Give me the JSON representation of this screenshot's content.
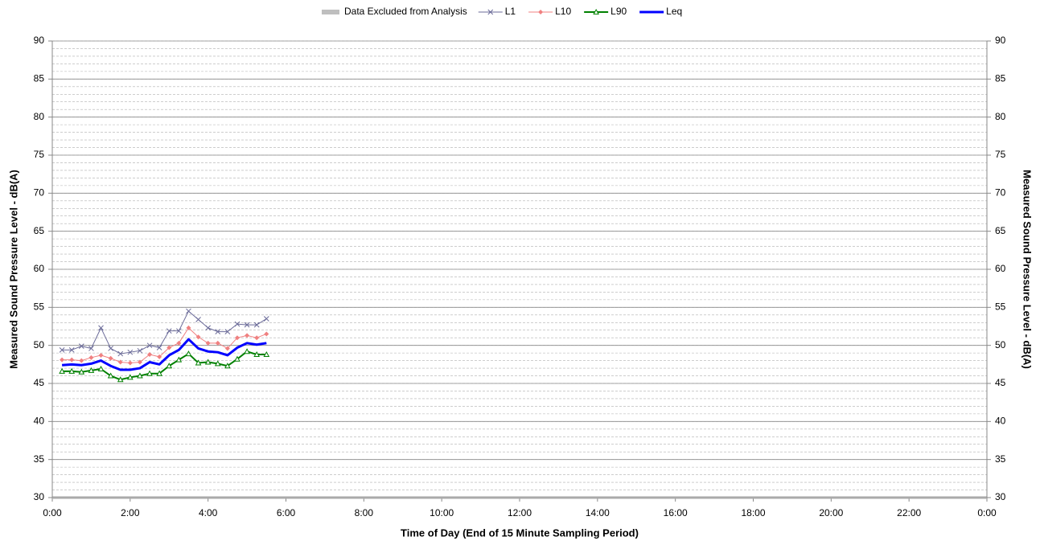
{
  "chart_data": {
    "type": "line",
    "x_title": "Time of Day (End of 15 Minute Sampling Period)",
    "y_title": "Measured Sound Pressure Level - dB(A)",
    "y2_title": "Measured Sound Pressure Level - dB(A)",
    "excluded_legend": {
      "name": "Data Excluded from Analysis",
      "color": "#bfbfbf"
    },
    "x": [
      0.25,
      0.5,
      0.75,
      1,
      1.25,
      1.5,
      1.75,
      2,
      2.25,
      2.5,
      2.75,
      3,
      3.25,
      3.5,
      3.75,
      4,
      4.25,
      4.5,
      4.75,
      5,
      5.25,
      5.5
    ],
    "xlim": [
      0,
      24
    ],
    "xticks": [
      {
        "value": 0,
        "label": "0:00"
      },
      {
        "value": 2,
        "label": "2:00"
      },
      {
        "value": 4,
        "label": "4:00"
      },
      {
        "value": 6,
        "label": "6:00"
      },
      {
        "value": 8,
        "label": "8:00"
      },
      {
        "value": 10,
        "label": "10:00"
      },
      {
        "value": 12,
        "label": "12:00"
      },
      {
        "value": 14,
        "label": "14:00"
      },
      {
        "value": 16,
        "label": "16:00"
      },
      {
        "value": 18,
        "label": "18:00"
      },
      {
        "value": 20,
        "label": "20:00"
      },
      {
        "value": 22,
        "label": "22:00"
      },
      {
        "value": 24,
        "label": "0:00"
      }
    ],
    "ylim": [
      30,
      90
    ],
    "yticks": [
      30,
      35,
      40,
      45,
      50,
      55,
      60,
      65,
      70,
      75,
      80,
      85,
      90
    ],
    "y2lim": [
      30,
      90
    ],
    "y2ticks": [
      30,
      35,
      40,
      45,
      50,
      55,
      60,
      65,
      70,
      75,
      80,
      85,
      90
    ],
    "grid": true,
    "minor_grid_step": 1,
    "legend": "top",
    "series": [
      {
        "name": "L1",
        "color": "#6b6b99",
        "marker": "x",
        "width": 1,
        "values": [
          49.4,
          49.4,
          49.9,
          49.6,
          52.3,
          49.6,
          48.9,
          49.1,
          49.3,
          50.0,
          49.7,
          51.9,
          51.9,
          54.5,
          53.4,
          52.3,
          51.8,
          51.8,
          52.8,
          52.7,
          52.7,
          53.5
        ]
      },
      {
        "name": "L10",
        "color": "#f08080",
        "marker": "diamond",
        "width": 1,
        "values": [
          48.1,
          48.1,
          48.0,
          48.4,
          48.7,
          48.3,
          47.8,
          47.7,
          47.8,
          48.8,
          48.5,
          49.7,
          50.3,
          52.3,
          51.1,
          50.3,
          50.3,
          49.6,
          51.0,
          51.3,
          51.0,
          51.5
        ]
      },
      {
        "name": "L90",
        "color": "#008000",
        "marker": "triangle",
        "width": 2,
        "values": [
          46.6,
          46.6,
          46.5,
          46.7,
          46.9,
          46.0,
          45.5,
          45.8,
          46.0,
          46.3,
          46.3,
          47.3,
          48.1,
          48.9,
          47.7,
          47.8,
          47.6,
          47.3,
          48.2,
          49.2,
          48.8,
          48.8
        ]
      },
      {
        "name": "Leq",
        "color": "#0000ff",
        "marker": "none",
        "width": 3,
        "values": [
          47.4,
          47.5,
          47.4,
          47.6,
          48.0,
          47.3,
          46.8,
          46.8,
          47.0,
          47.8,
          47.5,
          48.7,
          49.4,
          50.8,
          49.6,
          49.2,
          49.1,
          48.7,
          49.7,
          50.3,
          50.1,
          50.3
        ]
      }
    ]
  }
}
